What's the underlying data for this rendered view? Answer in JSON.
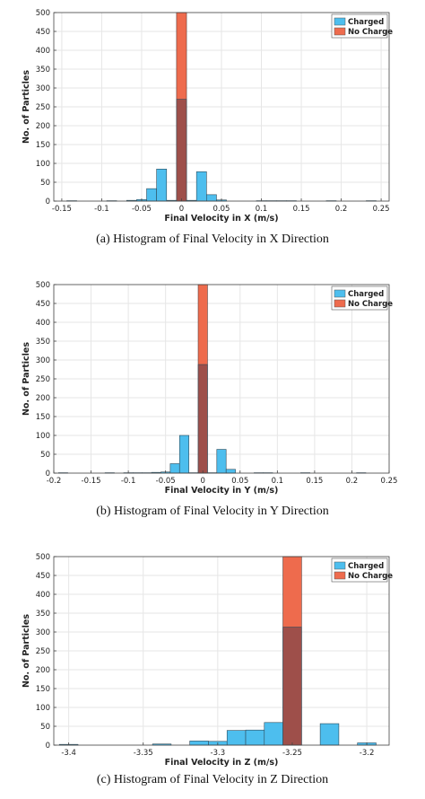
{
  "chart_data": [
    {
      "type": "bar",
      "caption": "(a) Histogram of Final Velocity in X Direction",
      "xlabel": "Final Velocity in X (m/s)",
      "ylabel": "No. of Particles",
      "xlim": [
        -0.16,
        0.26
      ],
      "ylim": [
        0,
        500
      ],
      "xticks": [
        "-0.15",
        "-0.1",
        "-0.05",
        "0",
        "0.05",
        "0.1",
        "0.15",
        "0.2",
        "0.25"
      ],
      "xtick_values": [
        -0.15,
        -0.1,
        -0.05,
        0,
        0.05,
        0.1,
        0.15,
        0.2,
        0.25
      ],
      "yticks": [
        "0",
        "50",
        "100",
        "150",
        "200",
        "250",
        "300",
        "350",
        "400",
        "450",
        "500"
      ],
      "bin_width": 0.0125,
      "legend_position": "top-right",
      "grid": true,
      "colors": {
        "charged": "#4DBEEE",
        "no_charge": "#EE6B4D",
        "overlap": "#9E4F4A"
      },
      "series": [
        {
          "name": "Charged",
          "bins": [
            {
              "x": -0.1375,
              "value": 1
            },
            {
              "x": -0.0875,
              "value": 1
            },
            {
              "x": -0.0625,
              "value": 2
            },
            {
              "x": -0.05,
              "value": 4
            },
            {
              "x": -0.0375,
              "value": 33
            },
            {
              "x": -0.025,
              "value": 85
            },
            {
              "x": -0.0125,
              "value": 2
            },
            {
              "x": 0.0,
              "value": 270
            },
            {
              "x": 0.0125,
              "value": 2
            },
            {
              "x": 0.025,
              "value": 78
            },
            {
              "x": 0.0375,
              "value": 17
            },
            {
              "x": 0.05,
              "value": 3
            },
            {
              "x": 0.1,
              "value": 1
            },
            {
              "x": 0.1125,
              "value": 1
            },
            {
              "x": 0.125,
              "value": 1
            },
            {
              "x": 0.1375,
              "value": 1
            },
            {
              "x": 0.1875,
              "value": 1
            },
            {
              "x": 0.2375,
              "value": 1
            }
          ]
        },
        {
          "name": "No Charge",
          "bins": [
            {
              "x": 0.0,
              "value": 500
            }
          ]
        }
      ]
    },
    {
      "type": "bar",
      "caption": "(b) Histogram of Final Velocity in Y Direction",
      "xlabel": "Final Velocity in Y (m/s)",
      "ylabel": "No. of Particles",
      "xlim": [
        -0.2,
        0.25
      ],
      "ylim": [
        0,
        500
      ],
      "xticks": [
        "-0.2",
        "-0.15",
        "-0.1",
        "-0.05",
        "0",
        "0.05",
        "0.1",
        "0.15",
        "0.2",
        "0.25"
      ],
      "xtick_values": [
        -0.2,
        -0.15,
        -0.1,
        -0.05,
        0,
        0.05,
        0.1,
        0.15,
        0.2,
        0.25
      ],
      "yticks": [
        "0",
        "50",
        "100",
        "150",
        "200",
        "250",
        "300",
        "350",
        "400",
        "450",
        "500"
      ],
      "bin_width": 0.0125,
      "legend_position": "top-right",
      "grid": true,
      "colors": {
        "charged": "#4DBEEE",
        "no_charge": "#EE6B4D",
        "overlap": "#9E4F4A"
      },
      "series": [
        {
          "name": "Charged",
          "bins": [
            {
              "x": -0.1875,
              "value": 1
            },
            {
              "x": -0.125,
              "value": 1
            },
            {
              "x": -0.1,
              "value": 1
            },
            {
              "x": -0.0875,
              "value": 1
            },
            {
              "x": -0.075,
              "value": 1
            },
            {
              "x": -0.0625,
              "value": 2
            },
            {
              "x": -0.05,
              "value": 3
            },
            {
              "x": -0.0375,
              "value": 25
            },
            {
              "x": -0.025,
              "value": 100
            },
            {
              "x": -0.0125,
              "value": 1
            },
            {
              "x": 0.0,
              "value": 288
            },
            {
              "x": 0.0125,
              "value": 1
            },
            {
              "x": 0.025,
              "value": 63
            },
            {
              "x": 0.0375,
              "value": 10
            },
            {
              "x": 0.075,
              "value": 1
            },
            {
              "x": 0.0875,
              "value": 1
            },
            {
              "x": 0.1375,
              "value": 1
            },
            {
              "x": 0.2125,
              "value": 1
            }
          ]
        },
        {
          "name": "No Charge",
          "bins": [
            {
              "x": 0.0,
              "value": 500
            }
          ]
        }
      ]
    },
    {
      "type": "bar",
      "caption": "(c) Histogram of Final Velocity in Z Direction",
      "xlabel": "Final Velocity in Z (m/s)",
      "ylabel": "No. of Particles",
      "xlim": [
        -3.41,
        -3.185
      ],
      "ylim": [
        0,
        500
      ],
      "xticks": [
        "-3.4",
        "-3.35",
        "-3.3",
        "-3.25",
        "-3.2"
      ],
      "xtick_values": [
        -3.4,
        -3.35,
        -3.3,
        -3.25,
        -3.2
      ],
      "yticks": [
        "0",
        "50",
        "100",
        "150",
        "200",
        "250",
        "300",
        "350",
        "400",
        "450",
        "500"
      ],
      "bin_width": 0.0125,
      "legend_position": "top-right",
      "grid": true,
      "colors": {
        "charged": "#4DBEEE",
        "no_charge": "#EE6B4D",
        "overlap": "#9E4F4A"
      },
      "series": [
        {
          "name": "Charged",
          "bins": [
            {
              "x": -3.4,
              "value": 2
            },
            {
              "x": -3.3375,
              "value": 3
            },
            {
              "x": -3.3125,
              "value": 11
            },
            {
              "x": -3.3,
              "value": 10
            },
            {
              "x": -3.2875,
              "value": 39
            },
            {
              "x": -3.275,
              "value": 40
            },
            {
              "x": -3.2625,
              "value": 60
            },
            {
              "x": -3.25,
              "value": 313
            },
            {
              "x": -3.225,
              "value": 57
            },
            {
              "x": -3.2,
              "value": 6
            }
          ]
        },
        {
          "name": "No Charge",
          "bins": [
            {
              "x": -3.25,
              "value": 500
            }
          ]
        }
      ]
    }
  ]
}
